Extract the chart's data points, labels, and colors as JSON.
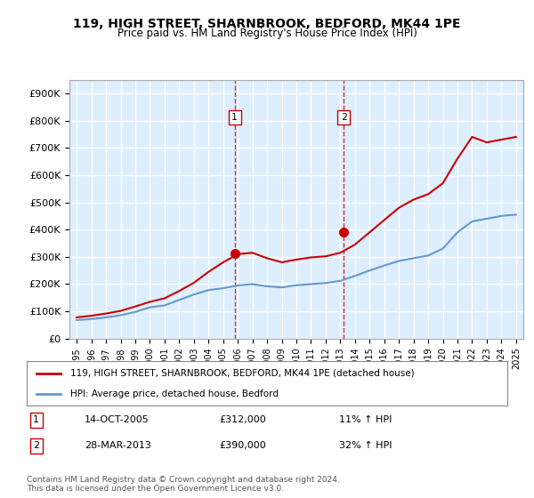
{
  "title": "119, HIGH STREET, SHARNBROOK, BEDFORD, MK44 1PE",
  "subtitle": "Price paid vs. HM Land Registry's House Price Index (HPI)",
  "legend_line1": "119, HIGH STREET, SHARNBROOK, BEDFORD, MK44 1PE (detached house)",
  "legend_line2": "HPI: Average price, detached house, Bedford",
  "annotation1_label": "1",
  "annotation1_date": "14-OCT-2005",
  "annotation1_price": "£312,000",
  "annotation1_hpi": "11% ↑ HPI",
  "annotation2_label": "2",
  "annotation2_date": "28-MAR-2013",
  "annotation2_price": "£390,000",
  "annotation2_hpi": "32% ↑ HPI",
  "footer": "Contains HM Land Registry data © Crown copyright and database right 2024.\nThis data is licensed under the Open Government Licence v3.0.",
  "line_color_red": "#cc0000",
  "line_color_blue": "#6699cc",
  "vline_color": "#cc0000",
  "background_color": "#ffffff",
  "plot_bg_color": "#ddeeff",
  "grid_color": "#ffffff",
  "ylim": [
    0,
    950000
  ],
  "yticks": [
    0,
    100000,
    200000,
    300000,
    400000,
    500000,
    600000,
    700000,
    800000,
    900000
  ],
  "ytick_labels": [
    "£0",
    "£100K",
    "£200K",
    "£300K",
    "£400K",
    "£500K",
    "£600K",
    "£700K",
    "£800K",
    "£900K"
  ],
  "sale1_year": 2005.79,
  "sale1_value": 312000,
  "sale2_year": 2013.24,
  "sale2_value": 390000,
  "hpi_years": [
    1995,
    1996,
    1997,
    1998,
    1999,
    2000,
    2001,
    2002,
    2003,
    2004,
    2005,
    2006,
    2007,
    2008,
    2009,
    2010,
    2011,
    2012,
    2013,
    2014,
    2015,
    2016,
    2017,
    2018,
    2019,
    2020,
    2021,
    2022,
    2023,
    2024,
    2025
  ],
  "hpi_values": [
    68000,
    72000,
    78000,
    86000,
    98000,
    115000,
    122000,
    142000,
    162000,
    178000,
    185000,
    195000,
    200000,
    192000,
    188000,
    196000,
    200000,
    204000,
    212000,
    230000,
    250000,
    268000,
    285000,
    295000,
    305000,
    330000,
    390000,
    430000,
    440000,
    450000,
    455000
  ],
  "hpi_red_years": [
    1995,
    1996,
    1997,
    1998,
    1999,
    2000,
    2001,
    2002,
    2003,
    2004,
    2005,
    2006,
    2007,
    2008,
    2009,
    2010,
    2011,
    2012,
    2013,
    2014,
    2015,
    2016,
    2017,
    2018,
    2019,
    2020,
    2021,
    2022,
    2023,
    2024,
    2025
  ],
  "hpi_red_values": [
    78000,
    84000,
    92000,
    102000,
    118000,
    135000,
    148000,
    175000,
    205000,
    245000,
    280000,
    310000,
    315000,
    295000,
    280000,
    290000,
    298000,
    302000,
    315000,
    345000,
    390000,
    435000,
    480000,
    510000,
    530000,
    570000,
    660000,
    740000,
    720000,
    730000,
    740000
  ]
}
